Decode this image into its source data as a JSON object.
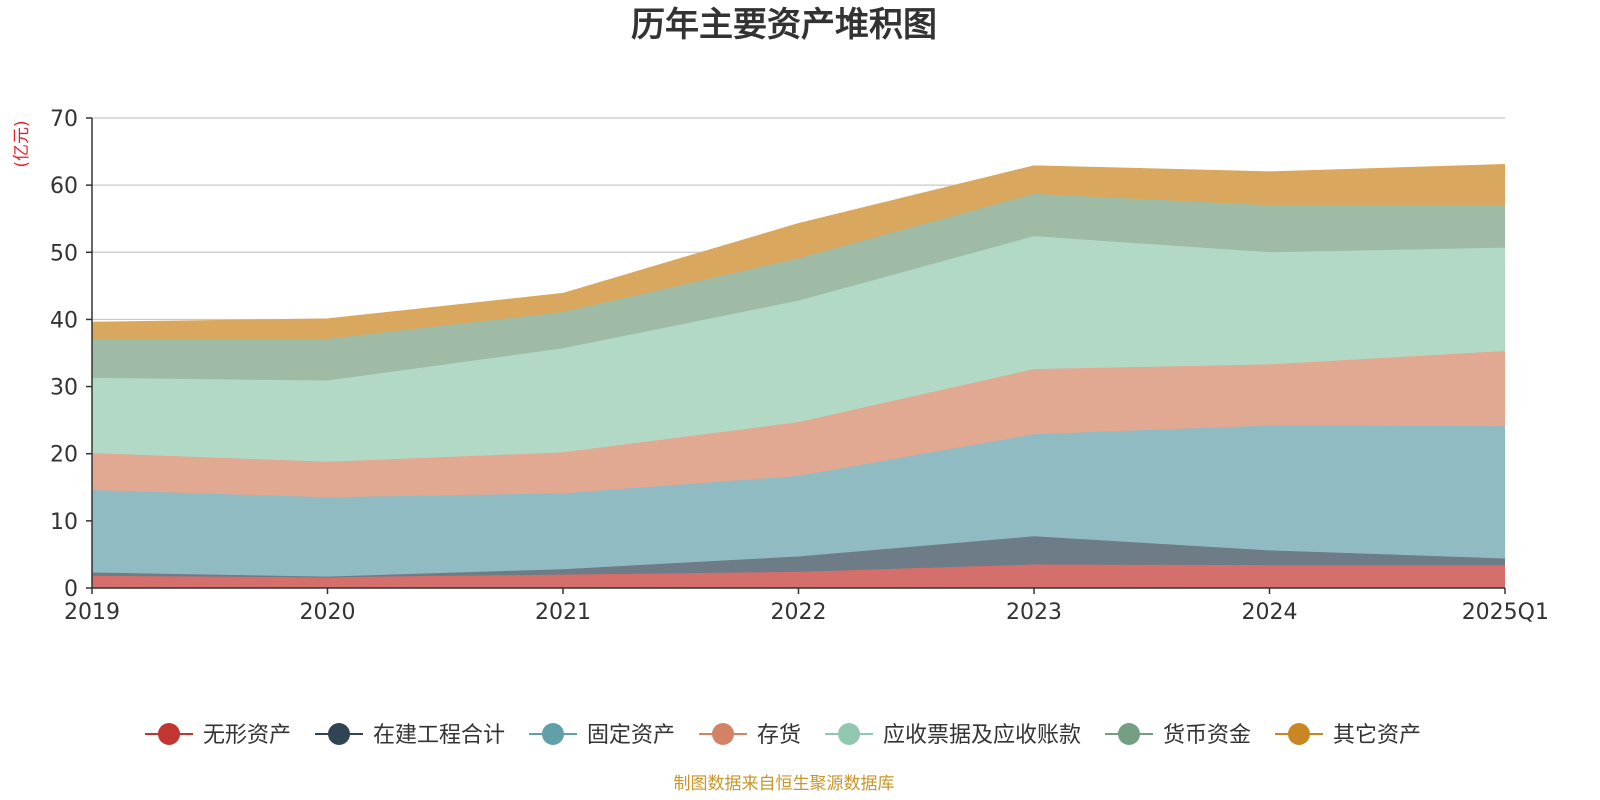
{
  "chart_data": {
    "type": "area",
    "stacked": true,
    "title": "历年主要资产堆积图",
    "ylabel": "(亿元)",
    "ylim": [
      0,
      70
    ],
    "yticks": [
      0,
      10,
      20,
      30,
      40,
      50,
      60,
      70
    ],
    "grid": true,
    "legend_position": "bottom",
    "categories": [
      "2019",
      "2020",
      "2021",
      "2022",
      "2023",
      "2024",
      "2025Q1"
    ],
    "series": [
      {
        "name": "无形资产",
        "color": "#c23531",
        "area_color": "#d46f6c",
        "values": [
          1.8,
          1.6,
          2.0,
          2.4,
          3.5,
          3.4,
          3.4
        ]
      },
      {
        "name": "在建工程合计",
        "color": "#2f4554",
        "area_color": "#6e7c87",
        "values": [
          0.5,
          0.1,
          0.8,
          2.3,
          4.2,
          2.2,
          1.0
        ]
      },
      {
        "name": "固定资产",
        "color": "#61a0a8",
        "area_color": "#90bbc2",
        "values": [
          12.3,
          11.8,
          11.3,
          12.0,
          15.2,
          18.6,
          19.7
        ]
      },
      {
        "name": "存货",
        "color": "#d48265",
        "area_color": "#e1a892",
        "values": [
          5.5,
          5.3,
          6.1,
          8.0,
          9.7,
          9.1,
          11.2
        ]
      },
      {
        "name": "应收票据及应收账款",
        "color": "#91c7ae",
        "area_color": "#b1d9c6",
        "values": [
          11.2,
          12.1,
          15.5,
          18.1,
          19.8,
          16.7,
          15.4
        ]
      },
      {
        "name": "货币资金",
        "color": "#749f83",
        "area_color": "#9fbba6",
        "values": [
          5.8,
          6.2,
          5.4,
          6.3,
          6.3,
          7.0,
          6.3
        ]
      },
      {
        "name": "其它资产",
        "color": "#ca8622",
        "area_color": "#d9a75d",
        "values": [
          2.4,
          2.9,
          2.7,
          5.1,
          4.1,
          4.9,
          6.0
        ]
      }
    ],
    "source": "制图数据来自恒生聚源数据库"
  }
}
